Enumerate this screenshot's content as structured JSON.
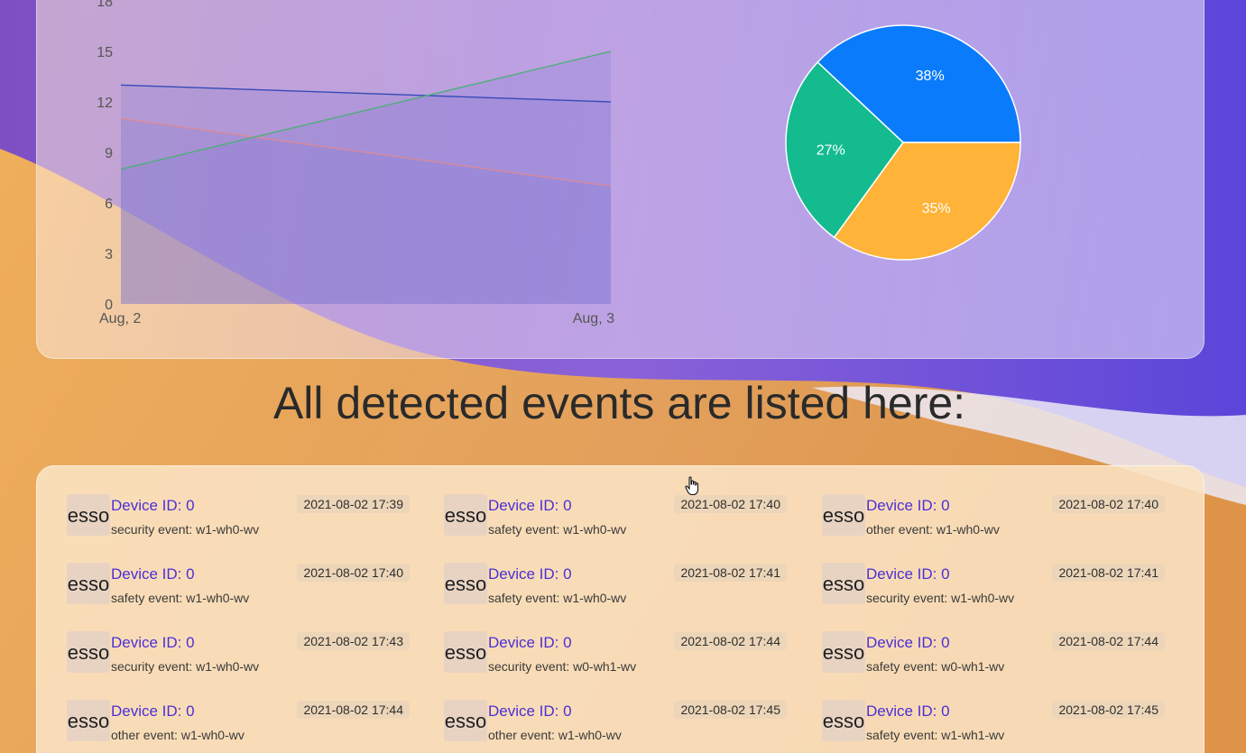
{
  "colors": {
    "series_blue": "#3549b8",
    "series_green": "#4fae7a",
    "series_red": "#d98a9a",
    "pie_blue": "#0a7cfb",
    "pie_orange": "#ffb338",
    "pie_green": "#13bb8e"
  },
  "chart_data": [
    {
      "type": "area",
      "x": [
        "Aug, 2",
        "Aug, 3"
      ],
      "series": [
        {
          "color": "blue",
          "values": [
            13,
            12
          ]
        },
        {
          "color": "red",
          "values": [
            11,
            7
          ]
        },
        {
          "color": "green",
          "values": [
            8,
            15
          ]
        }
      ],
      "y_ticks": [
        "0",
        "3",
        "6",
        "9",
        "12",
        "15",
        "18"
      ],
      "ylim": [
        0,
        18
      ],
      "grid": false,
      "title": "",
      "xlabel": "",
      "ylabel": ""
    },
    {
      "type": "pie",
      "slices": [
        {
          "label": "38%",
          "value": 38,
          "color": "blue"
        },
        {
          "label": "35%",
          "value": 35,
          "color": "orange"
        },
        {
          "label": "27%",
          "value": 27,
          "color": "green"
        }
      ],
      "title": ""
    }
  ],
  "events_heading": "All detected events are listed here:",
  "events": [
    {
      "avatar": "esso",
      "title": "Device ID: 0",
      "time": "2021-08-02 17:39",
      "desc": "security event: w1-wh0-wv"
    },
    {
      "avatar": "esso",
      "title": "Device ID: 0",
      "time": "2021-08-02 17:40",
      "desc": "safety event: w1-wh0-wv"
    },
    {
      "avatar": "esso",
      "title": "Device ID: 0",
      "time": "2021-08-02 17:40",
      "desc": "other event: w1-wh0-wv"
    },
    {
      "avatar": "esso",
      "title": "Device ID: 0",
      "time": "2021-08-02 17:40",
      "desc": "safety event: w1-wh0-wv"
    },
    {
      "avatar": "esso",
      "title": "Device ID: 0",
      "time": "2021-08-02 17:41",
      "desc": "safety event: w1-wh0-wv"
    },
    {
      "avatar": "esso",
      "title": "Device ID: 0",
      "time": "2021-08-02 17:41",
      "desc": "security event: w1-wh0-wv"
    },
    {
      "avatar": "esso",
      "title": "Device ID: 0",
      "time": "2021-08-02 17:43",
      "desc": "security event: w1-wh0-wv"
    },
    {
      "avatar": "esso",
      "title": "Device ID: 0",
      "time": "2021-08-02 17:44",
      "desc": "security event: w0-wh1-wv"
    },
    {
      "avatar": "esso",
      "title": "Device ID: 0",
      "time": "2021-08-02 17:44",
      "desc": "safety event: w0-wh1-wv"
    },
    {
      "avatar": "esso",
      "title": "Device ID: 0",
      "time": "2021-08-02 17:44",
      "desc": "other event: w1-wh0-wv"
    },
    {
      "avatar": "esso",
      "title": "Device ID: 0",
      "time": "2021-08-02 17:45",
      "desc": "other event: w1-wh0-wv"
    },
    {
      "avatar": "esso",
      "title": "Device ID: 0",
      "time": "2021-08-02 17:45",
      "desc": "safety event: w1-wh1-wv"
    }
  ]
}
